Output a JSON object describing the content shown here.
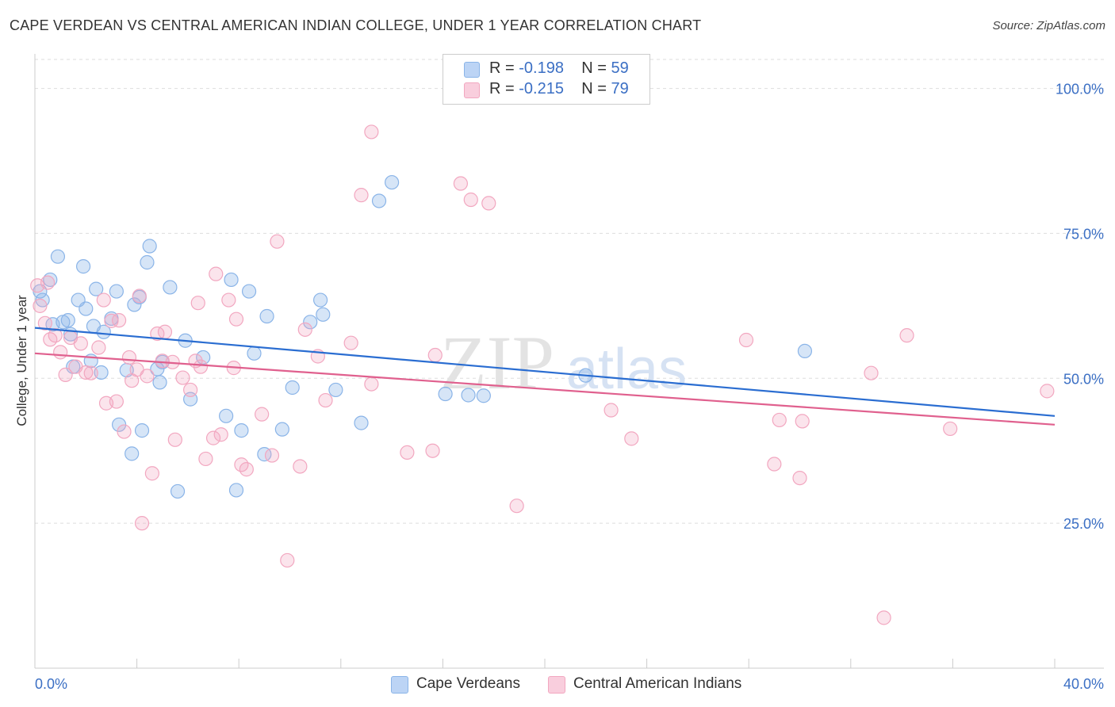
{
  "title": "CAPE VERDEAN VS CENTRAL AMERICAN INDIAN COLLEGE, UNDER 1 YEAR CORRELATION CHART",
  "source": "Source: ZipAtlas.com",
  "watermark": {
    "zip": "ZIP",
    "atlas": "atlas"
  },
  "legend": {
    "rows": [
      {
        "r_label": "R = ",
        "r_value": "-0.198",
        "n_label": "N = ",
        "n_value": "59"
      },
      {
        "r_label": "R = ",
        "r_value": "-0.215",
        "n_label": "N = ",
        "n_value": "79"
      }
    ]
  },
  "chart_data": {
    "type": "scatter",
    "title": "CAPE VERDEAN VS CENTRAL AMERICAN INDIAN COLLEGE, UNDER 1 YEAR CORRELATION CHART",
    "xlabel": "",
    "ylabel": "College, Under 1 year",
    "xlim": [
      0,
      40
    ],
    "ylim": [
      0,
      105
    ],
    "x_tick_labels": [
      "0.0%",
      "40.0%"
    ],
    "y_ticks": [
      25,
      50,
      75,
      100
    ],
    "y_tick_labels": [
      "25.0%",
      "50.0%",
      "75.0%",
      "100.0%"
    ],
    "grid": "horizontal dashed",
    "legend_position": "top-center",
    "series": [
      {
        "name": "Cape Verdeans",
        "color": "#8ab4e8",
        "line_color": "#2a6dd1",
        "trend": [
          [
            0,
            58.7
          ],
          [
            40,
            43.5
          ]
        ],
        "points": [
          [
            0.2,
            65.0
          ],
          [
            0.3,
            63.5
          ],
          [
            0.6,
            67.0
          ],
          [
            0.7,
            59.3
          ],
          [
            0.9,
            71.0
          ],
          [
            1.1,
            59.7
          ],
          [
            1.3,
            60.0
          ],
          [
            1.4,
            57.6
          ],
          [
            1.5,
            52.0
          ],
          [
            1.7,
            63.5
          ],
          [
            1.9,
            69.3
          ],
          [
            2.0,
            62.0
          ],
          [
            2.2,
            53.0
          ],
          [
            2.3,
            59.0
          ],
          [
            2.4,
            65.4
          ],
          [
            2.6,
            51.0
          ],
          [
            2.7,
            58.0
          ],
          [
            3.0,
            60.3
          ],
          [
            3.2,
            65.0
          ],
          [
            3.3,
            42.0
          ],
          [
            3.6,
            51.4
          ],
          [
            3.8,
            37.0
          ],
          [
            3.9,
            62.7
          ],
          [
            4.1,
            64.0
          ],
          [
            4.2,
            41.0
          ],
          [
            4.4,
            70.0
          ],
          [
            4.5,
            72.8
          ],
          [
            4.8,
            51.6
          ],
          [
            4.9,
            49.3
          ],
          [
            5.0,
            52.8
          ],
          [
            5.3,
            65.7
          ],
          [
            5.6,
            30.5
          ],
          [
            5.9,
            56.5
          ],
          [
            6.1,
            46.4
          ],
          [
            6.6,
            53.6
          ],
          [
            7.5,
            43.5
          ],
          [
            7.7,
            67.0
          ],
          [
            7.9,
            30.7
          ],
          [
            8.1,
            41.0
          ],
          [
            8.4,
            65.0
          ],
          [
            8.6,
            54.3
          ],
          [
            9.0,
            36.9
          ],
          [
            9.1,
            60.7
          ],
          [
            9.7,
            41.2
          ],
          [
            10.1,
            48.4
          ],
          [
            10.8,
            59.7
          ],
          [
            11.2,
            63.5
          ],
          [
            11.3,
            61.0
          ],
          [
            11.8,
            48.0
          ],
          [
            12.8,
            42.3
          ],
          [
            13.5,
            80.6
          ],
          [
            14.0,
            83.8
          ],
          [
            16.1,
            47.3
          ],
          [
            17.0,
            47.1
          ],
          [
            17.6,
            47.0
          ],
          [
            21.6,
            50.5
          ],
          [
            30.2,
            54.7
          ]
        ]
      },
      {
        "name": "Central American Indians",
        "color": "#f2a7c0",
        "line_color": "#e0608e",
        "trend": [
          [
            0,
            54.3
          ],
          [
            40,
            42.0
          ]
        ],
        "points": [
          [
            0.1,
            66.0
          ],
          [
            0.2,
            62.5
          ],
          [
            0.4,
            59.5
          ],
          [
            0.5,
            66.5
          ],
          [
            0.6,
            56.7
          ],
          [
            0.8,
            57.4
          ],
          [
            1.0,
            54.5
          ],
          [
            1.2,
            50.6
          ],
          [
            1.4,
            57.0
          ],
          [
            1.6,
            52.0
          ],
          [
            1.8,
            56.0
          ],
          [
            2.0,
            51.0
          ],
          [
            2.2,
            50.9
          ],
          [
            2.5,
            55.3
          ],
          [
            2.7,
            63.5
          ],
          [
            2.8,
            45.7
          ],
          [
            3.0,
            59.9
          ],
          [
            3.2,
            46.0
          ],
          [
            3.3,
            60.0
          ],
          [
            3.5,
            40.8
          ],
          [
            3.7,
            53.6
          ],
          [
            3.8,
            49.6
          ],
          [
            4.0,
            51.5
          ],
          [
            4.1,
            64.2
          ],
          [
            4.2,
            25.0
          ],
          [
            4.4,
            50.4
          ],
          [
            4.6,
            33.6
          ],
          [
            4.8,
            57.7
          ],
          [
            5.0,
            53.0
          ],
          [
            5.1,
            58.0
          ],
          [
            5.4,
            52.8
          ],
          [
            5.5,
            39.4
          ],
          [
            5.8,
            50.1
          ],
          [
            6.1,
            48.0
          ],
          [
            6.3,
            53.0
          ],
          [
            6.4,
            63.0
          ],
          [
            6.5,
            52.0
          ],
          [
            6.7,
            36.1
          ],
          [
            7.0,
            39.7
          ],
          [
            7.1,
            68.0
          ],
          [
            7.3,
            40.3
          ],
          [
            7.6,
            63.5
          ],
          [
            7.8,
            51.8
          ],
          [
            7.9,
            60.2
          ],
          [
            8.1,
            35.1
          ],
          [
            8.3,
            34.3
          ],
          [
            8.9,
            43.8
          ],
          [
            9.3,
            36.7
          ],
          [
            9.5,
            73.6
          ],
          [
            9.9,
            18.6
          ],
          [
            10.4,
            34.8
          ],
          [
            10.6,
            58.4
          ],
          [
            11.1,
            53.8
          ],
          [
            11.4,
            46.2
          ],
          [
            12.4,
            56.1
          ],
          [
            12.8,
            81.6
          ],
          [
            13.2,
            49.0
          ],
          [
            13.2,
            92.5
          ],
          [
            14.6,
            37.2
          ],
          [
            15.6,
            37.5
          ],
          [
            15.7,
            54.0
          ],
          [
            16.7,
            83.6
          ],
          [
            17.1,
            80.8
          ],
          [
            17.8,
            80.2
          ],
          [
            18.9,
            28.0
          ],
          [
            22.6,
            44.5
          ],
          [
            23.4,
            39.6
          ],
          [
            27.9,
            56.6
          ],
          [
            29.0,
            35.2
          ],
          [
            29.2,
            42.8
          ],
          [
            30.0,
            32.8
          ],
          [
            30.1,
            42.6
          ],
          [
            32.8,
            50.9
          ],
          [
            33.3,
            8.7
          ],
          [
            34.2,
            57.4
          ],
          [
            35.9,
            41.3
          ],
          [
            39.7,
            47.8
          ]
        ]
      }
    ]
  }
}
